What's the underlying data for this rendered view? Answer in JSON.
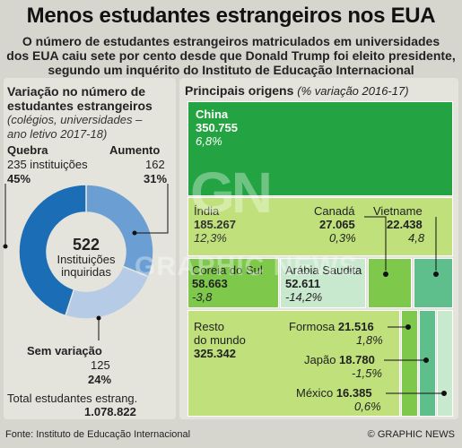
{
  "title": "Menos estudantes estrangeiros nos EUA",
  "subtitle_lines": [
    "O número de estudantes estrangeiros matriculados em universidades",
    "dos EUA caiu sete por cento desde que Donald Trump foi eleito presidente,",
    "segundo um inquérito do Instituto de Educação Internacional"
  ],
  "left_panel": {
    "title_lines": [
      "Variação no número de",
      "estudantes estrangeiros"
    ],
    "subtitle_lines": [
      "(colégios, universidades –",
      "ano letivo 2017-18)"
    ],
    "center_value": "522",
    "center_label_lines": [
      "Instituições",
      "inquiridas"
    ],
    "total_label": "Total estudantes estrang.",
    "total_value": "1.078.822"
  },
  "right_panel": {
    "title": "Principais origens",
    "title_note": "(% variação 2016-17)"
  },
  "chart_data": [
    {
      "type": "pie",
      "title": "Variação no número de estudantes estrangeiros",
      "categories": [
        "Quebra",
        "Aumento",
        "Sem variação"
      ],
      "values": [
        235,
        162,
        125
      ],
      "value_labels": [
        "235 instituições",
        "162",
        "125"
      ],
      "percent_labels": [
        "45%",
        "31%",
        "24%"
      ],
      "colors": [
        "#1b6db5",
        "#6b9fd3",
        "#b6cbe6"
      ]
    },
    {
      "type": "table",
      "title": "Principais origens",
      "categories": [
        "China",
        "Índia",
        "Canadá",
        "Vietname",
        "Coreia do Sul",
        "Arábia Saudita",
        "Formosa",
        "Japão",
        "México",
        "Resto do mundo"
      ],
      "value_labels": [
        "350.755",
        "185.267",
        "27.065",
        "22.438",
        "58.663",
        "52.611",
        "21.516",
        "18.780",
        "16.385",
        "325.342"
      ],
      "change_labels": [
        "6,8%",
        "12,3%",
        "0,3%",
        "4,8",
        "-3,8",
        "-14,2%",
        "1,8%",
        "-1,5%",
        "0,6%",
        ""
      ],
      "colors": {
        "increase_strong": "#23a341",
        "increase": "#7ec94c",
        "increase_light": "#bfe07a",
        "decrease": "#5fbf8c",
        "decrease_light": "#c9e9cf"
      }
    }
  ],
  "footer": {
    "source": "Fonte: Instituto de Educação Internacional",
    "credit": "© GRAPHIC NEWS"
  },
  "watermark": {
    "logo": "GN",
    "text": "GRAPHIC NEWS"
  }
}
